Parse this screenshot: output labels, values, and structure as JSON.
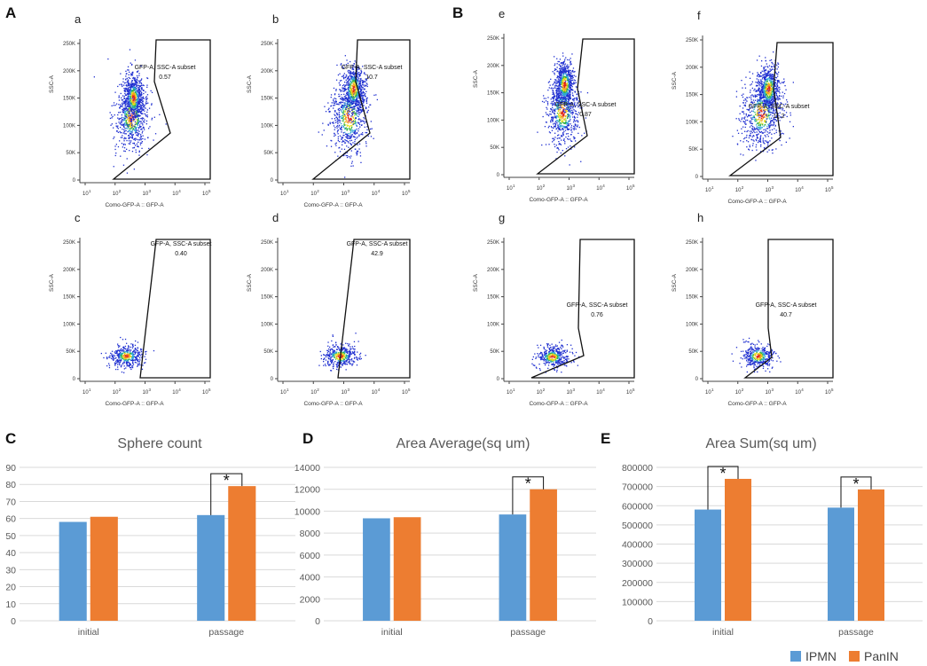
{
  "panel_letters": {
    "A": "A",
    "B": "B",
    "C": "C",
    "D": "D",
    "E": "E"
  },
  "colors": {
    "ipmn": "#5b9bd5",
    "panin": "#ed7d31",
    "gate": "#111111",
    "axis": "#555555"
  },
  "flow": {
    "x_axis_label": "Como-GFP-A :: GFP-A",
    "y_axis_label": "SSC-A",
    "x_ticks": [
      "10",
      "10",
      "10",
      "10",
      "10"
    ],
    "x_tick_exponents": [
      "1",
      "2",
      "3",
      "4",
      "5"
    ],
    "y_ticks": [
      "0",
      "50K",
      "100K",
      "150K",
      "200K",
      "250K"
    ],
    "gate_name": "GFP-A, SSC-A subset",
    "plots": [
      {
        "id": "a",
        "letter": "a",
        "value": "0.57"
      },
      {
        "id": "b",
        "letter": "b",
        "value": "10.7"
      },
      {
        "id": "c",
        "letter": "c",
        "value": "0.40"
      },
      {
        "id": "d",
        "letter": "d",
        "value": "42.9"
      },
      {
        "id": "e",
        "letter": "e",
        "value": "0.87"
      },
      {
        "id": "f",
        "letter": "f",
        "value": "11.2"
      },
      {
        "id": "g",
        "letter": "g",
        "value": "0.76"
      },
      {
        "id": "h",
        "letter": "h",
        "value": "40.7"
      }
    ]
  },
  "legend": {
    "ipmn": "IPMN",
    "panin": "PanIN"
  },
  "significance_marker": "*",
  "chart_data": [
    {
      "type": "bar",
      "title": "Sphere count",
      "categories": [
        "initial",
        "passage"
      ],
      "series": [
        {
          "name": "IPMN",
          "values": [
            58,
            62
          ]
        },
        {
          "name": "PanIN",
          "values": [
            61,
            79
          ]
        }
      ],
      "ylim": [
        0,
        90
      ],
      "y_ticks": [
        0,
        10,
        20,
        30,
        40,
        50,
        60,
        70,
        80,
        90
      ],
      "y_tick_labels": [
        "0",
        "10",
        "20",
        "30",
        "40",
        "50",
        "60",
        "70",
        "80",
        "90"
      ],
      "significant": [
        false,
        true
      ]
    },
    {
      "type": "bar",
      "title": "Area Average(sq um)",
      "categories": [
        "initial",
        "passage"
      ],
      "series": [
        {
          "name": "IPMN",
          "values": [
            9350,
            9700
          ]
        },
        {
          "name": "PanIN",
          "values": [
            9450,
            12000
          ]
        }
      ],
      "ylim": [
        0,
        14000
      ],
      "y_ticks": [
        0,
        2000,
        4000,
        6000,
        8000,
        10000,
        12000,
        14000
      ],
      "y_tick_labels": [
        "0",
        "2000",
        "4000",
        "6000",
        "8000",
        "10000",
        "12000",
        "14000"
      ],
      "significant": [
        false,
        true
      ]
    },
    {
      "type": "bar",
      "title": "Area Sum(sq um)",
      "categories": [
        "initial",
        "passage"
      ],
      "series": [
        {
          "name": "IPMN",
          "values": [
            580000,
            590000
          ]
        },
        {
          "name": "PanIN",
          "values": [
            740000,
            685000
          ]
        }
      ],
      "ylim": [
        0,
        800000
      ],
      "y_ticks": [
        0,
        100000,
        200000,
        300000,
        400000,
        500000,
        600000,
        700000,
        800000
      ],
      "y_tick_labels": [
        "0",
        "100000",
        "200000",
        "300000",
        "400000",
        "500000",
        "600000",
        "700000",
        "800000"
      ],
      "significant": [
        true,
        true
      ]
    }
  ]
}
